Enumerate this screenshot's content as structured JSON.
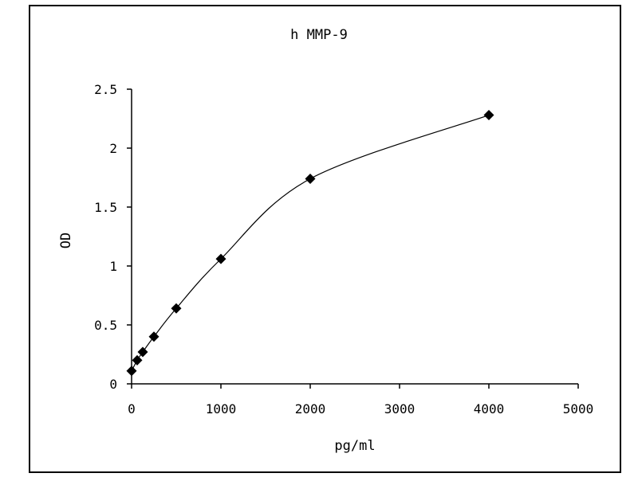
{
  "chart_data": {
    "type": "scatter",
    "title": "h MMP-9",
    "xlabel": "pg/ml",
    "ylabel": "OD",
    "xlim": [
      0,
      5000
    ],
    "ylim": [
      0,
      2.5
    ],
    "x_ticks": [
      "0",
      "1000",
      "2000",
      "3000",
      "4000",
      "5000"
    ],
    "y_ticks": [
      "0",
      "0.5",
      "1",
      "1.5",
      "2",
      "2.5"
    ],
    "grid": false,
    "legend": "none",
    "marker": "diamond",
    "smooth_line": true,
    "series": [
      {
        "x": [
          0,
          62.5,
          125,
          250,
          500,
          1000,
          2000,
          4000
        ],
        "y": [
          0.11,
          0.2,
          0.27,
          0.4,
          0.64,
          1.06,
          1.74,
          2.28
        ]
      }
    ]
  }
}
